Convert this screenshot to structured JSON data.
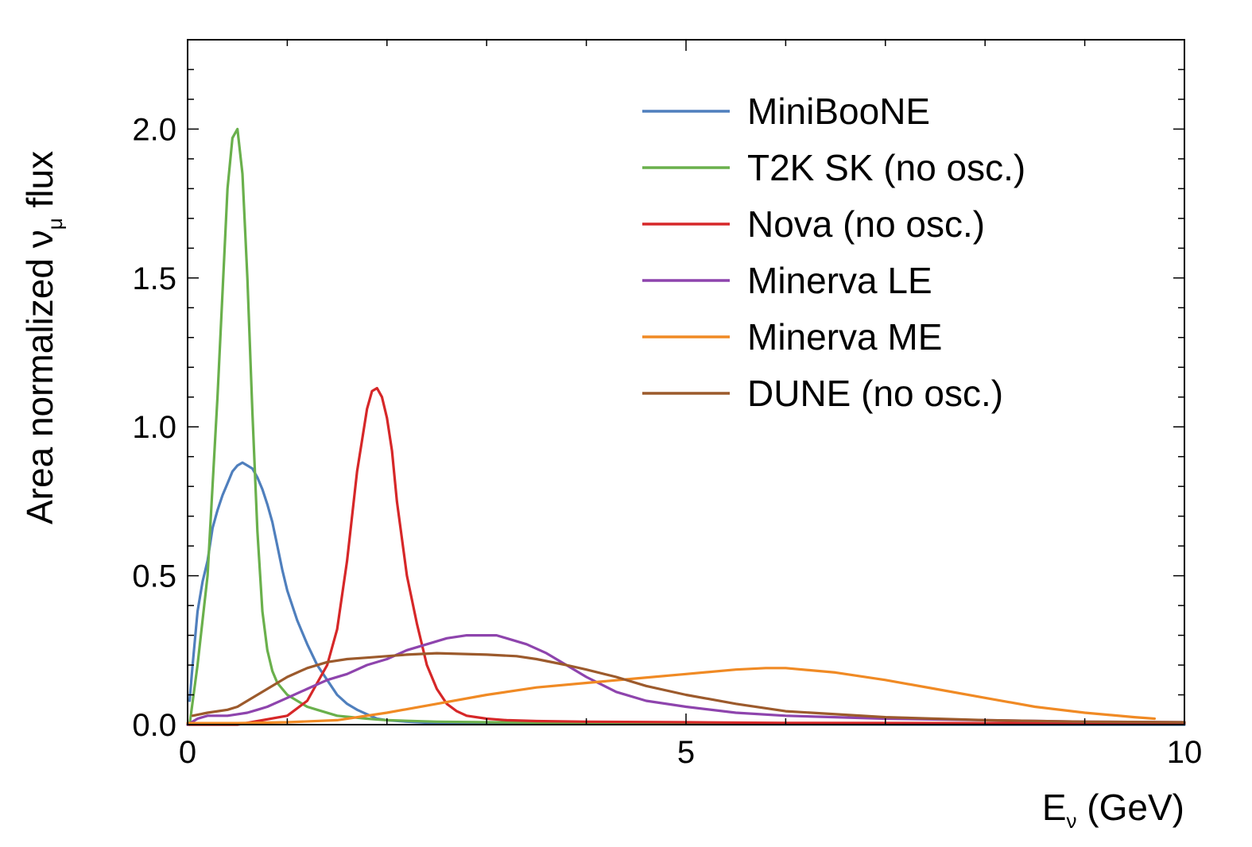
{
  "chart_data": {
    "type": "line",
    "title": "",
    "xlabel": {
      "main": "E",
      "sub": "ν",
      "unit": " (GeV)"
    },
    "ylabel": {
      "pre": "Area normalized ",
      "sym": "ν",
      "sub": "μ",
      "post": " flux"
    },
    "xlim": [
      0,
      10
    ],
    "ylim": [
      0,
      2.3
    ],
    "x_ticks": [
      0,
      5,
      10
    ],
    "x_tick_labels": [
      "0",
      "5",
      "10"
    ],
    "y_ticks": [
      0.0,
      0.5,
      1.0,
      1.5,
      2.0
    ],
    "y_tick_labels": [
      "0.0",
      "0.5",
      "1.0",
      "1.5",
      "2.0"
    ],
    "legend_position": "top-right",
    "grid": false,
    "series": [
      {
        "name": "MiniBooNE",
        "color": "#4f7fbd",
        "x": [
          0.02,
          0.05,
          0.1,
          0.15,
          0.2,
          0.25,
          0.3,
          0.35,
          0.4,
          0.45,
          0.5,
          0.55,
          0.6,
          0.65,
          0.7,
          0.75,
          0.8,
          0.85,
          0.9,
          0.95,
          1.0,
          1.1,
          1.2,
          1.3,
          1.4,
          1.5,
          1.6,
          1.7,
          1.8,
          1.9,
          2.0,
          2.2,
          2.5,
          3.0,
          4.0,
          6.0,
          8.0,
          10.0
        ],
        "y": [
          0.08,
          0.2,
          0.38,
          0.48,
          0.55,
          0.66,
          0.72,
          0.77,
          0.81,
          0.85,
          0.87,
          0.88,
          0.87,
          0.86,
          0.83,
          0.79,
          0.74,
          0.68,
          0.6,
          0.52,
          0.45,
          0.35,
          0.27,
          0.2,
          0.15,
          0.1,
          0.07,
          0.05,
          0.035,
          0.02,
          0.015,
          0.01,
          0.005,
          0.003,
          0.002,
          0.001,
          0.0,
          0.0
        ]
      },
      {
        "name": "T2K SK (no osc.)",
        "color": "#6ab04c",
        "x": [
          0.02,
          0.1,
          0.2,
          0.3,
          0.35,
          0.4,
          0.45,
          0.5,
          0.55,
          0.6,
          0.65,
          0.7,
          0.75,
          0.8,
          0.85,
          0.9,
          0.95,
          1.0,
          1.1,
          1.2,
          1.3,
          1.5,
          1.8,
          2.0,
          2.5,
          3.0,
          4.0,
          6.0,
          8.0,
          10.0
        ],
        "y": [
          0.0,
          0.2,
          0.5,
          1.1,
          1.45,
          1.8,
          1.97,
          2.0,
          1.85,
          1.5,
          1.05,
          0.65,
          0.38,
          0.25,
          0.18,
          0.14,
          0.12,
          0.1,
          0.08,
          0.06,
          0.05,
          0.03,
          0.02,
          0.015,
          0.01,
          0.008,
          0.006,
          0.005,
          0.005,
          0.005
        ]
      },
      {
        "name": "Nova (no osc.)",
        "color": "#d62728",
        "x": [
          0.0,
          0.5,
          1.0,
          1.2,
          1.4,
          1.5,
          1.6,
          1.7,
          1.8,
          1.85,
          1.9,
          1.95,
          2.0,
          2.05,
          2.1,
          2.2,
          2.3,
          2.4,
          2.5,
          2.6,
          2.7,
          2.8,
          3.0,
          3.2,
          3.5,
          4.0,
          5.0,
          6.0,
          8.0,
          10.0
        ],
        "y": [
          0.0,
          0.0,
          0.03,
          0.08,
          0.2,
          0.32,
          0.55,
          0.85,
          1.06,
          1.12,
          1.13,
          1.1,
          1.03,
          0.92,
          0.75,
          0.5,
          0.34,
          0.2,
          0.12,
          0.07,
          0.045,
          0.03,
          0.02,
          0.015,
          0.012,
          0.01,
          0.008,
          0.006,
          0.005,
          0.005
        ]
      },
      {
        "name": "Minerva LE",
        "color": "#8e44ad",
        "x": [
          0.0,
          0.1,
          0.2,
          0.3,
          0.4,
          0.5,
          0.6,
          0.7,
          0.8,
          1.0,
          1.2,
          1.4,
          1.6,
          1.8,
          2.0,
          2.2,
          2.4,
          2.6,
          2.8,
          3.0,
          3.1,
          3.2,
          3.4,
          3.6,
          3.8,
          4.0,
          4.3,
          4.6,
          5.0,
          5.5,
          6.0,
          7.0,
          8.0,
          9.0,
          10.0
        ],
        "y": [
          0.0,
          0.02,
          0.03,
          0.03,
          0.03,
          0.035,
          0.04,
          0.05,
          0.06,
          0.09,
          0.12,
          0.15,
          0.17,
          0.2,
          0.22,
          0.25,
          0.27,
          0.29,
          0.3,
          0.3,
          0.3,
          0.29,
          0.27,
          0.24,
          0.2,
          0.16,
          0.11,
          0.08,
          0.06,
          0.04,
          0.03,
          0.02,
          0.015,
          0.01,
          0.008
        ]
      },
      {
        "name": "Minerva ME",
        "color": "#f08a24",
        "x": [
          0.0,
          0.5,
          1.0,
          1.5,
          2.0,
          2.5,
          3.0,
          3.5,
          4.0,
          4.5,
          5.0,
          5.5,
          5.8,
          6.0,
          6.5,
          7.0,
          7.5,
          8.0,
          8.5,
          9.0,
          9.5,
          9.7
        ],
        "y": [
          0.005,
          0.005,
          0.008,
          0.015,
          0.04,
          0.07,
          0.1,
          0.125,
          0.14,
          0.155,
          0.17,
          0.185,
          0.19,
          0.19,
          0.175,
          0.15,
          0.12,
          0.09,
          0.06,
          0.04,
          0.025,
          0.02
        ]
      },
      {
        "name": "DUNE (no osc.)",
        "color": "#9c5a2c",
        "x": [
          0.05,
          0.2,
          0.4,
          0.5,
          0.6,
          0.8,
          1.0,
          1.2,
          1.4,
          1.6,
          1.8,
          2.0,
          2.2,
          2.5,
          3.0,
          3.3,
          3.5,
          3.8,
          4.0,
          4.3,
          4.6,
          5.0,
          5.5,
          6.0,
          7.0,
          8.0,
          9.0,
          10.0
        ],
        "y": [
          0.03,
          0.04,
          0.05,
          0.06,
          0.08,
          0.12,
          0.16,
          0.19,
          0.21,
          0.22,
          0.225,
          0.23,
          0.235,
          0.24,
          0.235,
          0.23,
          0.22,
          0.2,
          0.185,
          0.16,
          0.13,
          0.1,
          0.07,
          0.045,
          0.025,
          0.015,
          0.01,
          0.008
        ]
      }
    ]
  }
}
